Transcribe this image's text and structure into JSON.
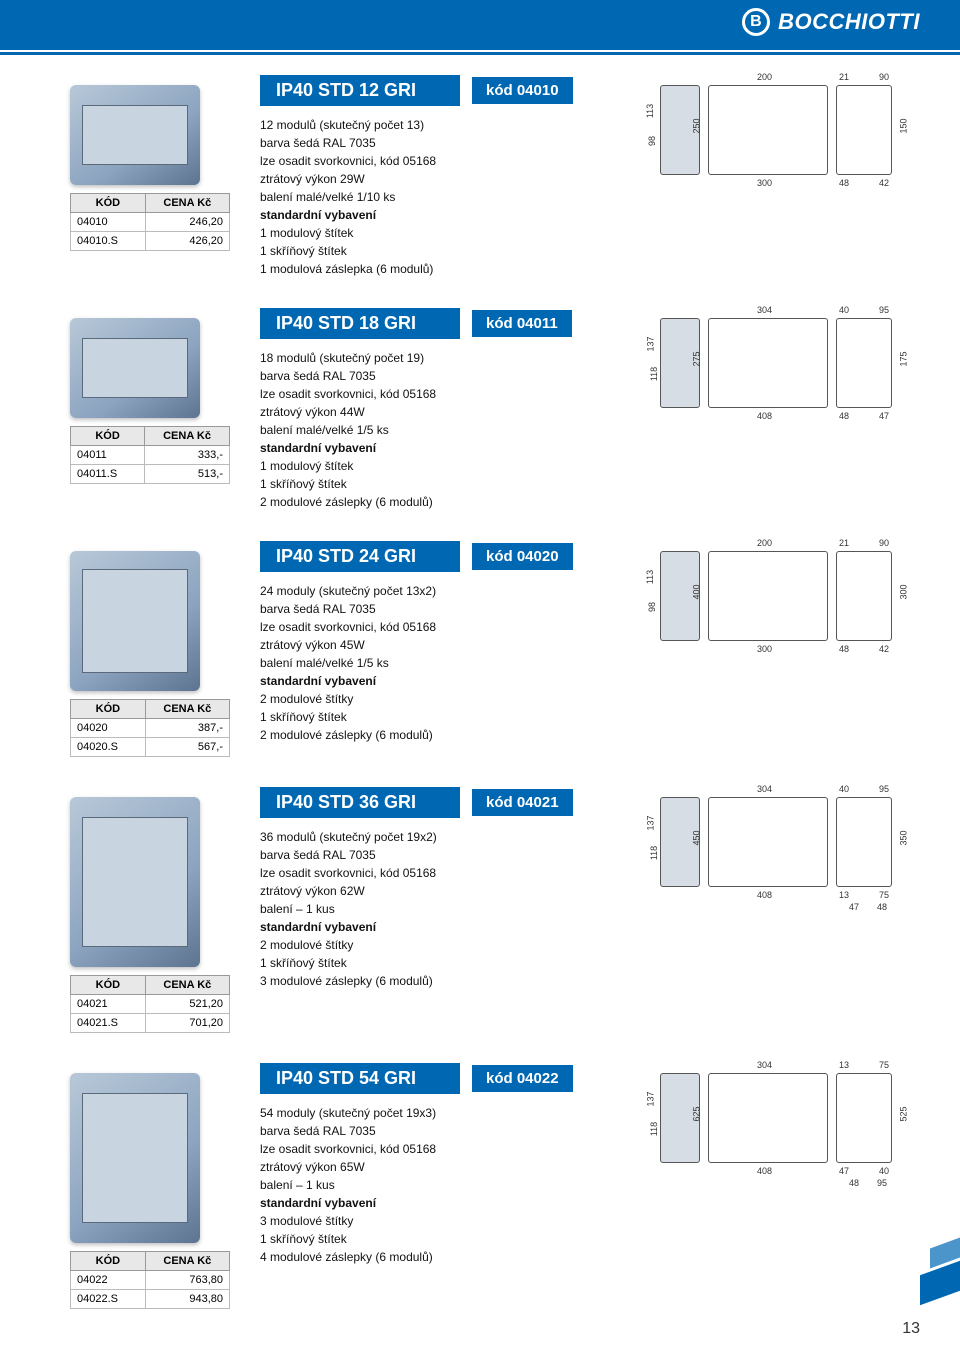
{
  "brand": "BOCCHIOTTI",
  "page_number": "13",
  "table_headers": {
    "code": "KÓD",
    "price": "CENA Kč"
  },
  "products": [
    {
      "title": "IP40 STD 12 GRI",
      "code_label": "kód 04010",
      "rows": [
        {
          "code": "04010",
          "price": "246,20"
        },
        {
          "code": "04010.S",
          "price": "426,20"
        }
      ],
      "desc": [
        "12 modulů (skutečný počet 13)",
        "barva šedá RAL 7035",
        "lze osadit svorkovnici, kód 05168",
        "ztrátový výkon 29W",
        "balení malé/velké 1/10 ks"
      ],
      "std_heading": "standardní vybavení",
      "std": [
        "1 modulový štítek",
        "1 skříňový štítek",
        "1 modulová záslepka (6 modulů)"
      ],
      "dims": {
        "front_h": "113",
        "front_d": "98",
        "top_w": "200",
        "top_h": "250",
        "top_b": "300",
        "side_a": "21",
        "side_b": "90",
        "side_h": "150",
        "side_c": "48",
        "side_d": "42"
      }
    },
    {
      "title": "IP40 STD 18 GRI",
      "code_label": "kód 04011",
      "rows": [
        {
          "code": "04011",
          "price": "333,-"
        },
        {
          "code": "04011.S",
          "price": "513,-"
        }
      ],
      "desc": [
        "18 modulů (skutečný počet 19)",
        "barva šedá RAL 7035",
        "lze osadit svorkovnici, kód 05168",
        "ztrátový výkon 44W",
        "balení malé/velké 1/5 ks"
      ],
      "std_heading": "standardní vybavení",
      "std": [
        "1 modulový štítek",
        "1 skříňový štítek",
        "2 modulové záslepky (6 modulů)"
      ],
      "dims": {
        "front_h": "137",
        "front_d": "118",
        "top_w": "304",
        "top_h": "275",
        "top_b": "408",
        "side_a": "40",
        "side_b": "95",
        "side_h": "175",
        "side_c": "48",
        "side_d": "47"
      }
    },
    {
      "title": "IP40 STD 24 GRI",
      "code_label": "kód 04020",
      "rows": [
        {
          "code": "04020",
          "price": "387,-"
        },
        {
          "code": "04020.S",
          "price": "567,-"
        }
      ],
      "desc": [
        "24 moduly (skutečný počet 13x2)",
        "barva šedá RAL 7035",
        "lze osadit svorkovnici, kód 05168",
        "ztrátový výkon 45W",
        "balení malé/velké 1/5 ks"
      ],
      "std_heading": "standardní vybavení",
      "std": [
        "2 modulové štítky",
        "1 skříňový štítek",
        "2 modulové záslepky (6 modulů)"
      ],
      "dims": {
        "front_h": "113",
        "front_d": "98",
        "top_w": "200",
        "top_h": "400",
        "top_b": "300",
        "side_a": "21",
        "side_b": "90",
        "side_h": "300",
        "side_c": "48",
        "side_d": "42"
      }
    },
    {
      "title": "IP40 STD 36 GRI",
      "code_label": "kód 04021",
      "rows": [
        {
          "code": "04021",
          "price": "521,20"
        },
        {
          "code": "04021.S",
          "price": "701,20"
        }
      ],
      "desc": [
        "36 modulů (skutečný počet 19x2)",
        "barva šedá RAL 7035",
        "lze osadit svorkovnici, kód 05168",
        "ztrátový výkon 62W",
        "balení – 1 kus"
      ],
      "std_heading": "standardní vybavení",
      "std": [
        "2 modulové štítky",
        "1 skříňový štítek",
        "3 modulové záslepky (6 modulů)"
      ],
      "dims": {
        "front_h": "137",
        "front_d": "118",
        "top_w": "304",
        "top_h": "450",
        "top_b": "408",
        "side_a": "40",
        "side_b": "95",
        "side_h": "350",
        "side_c": "13",
        "side_d": "75",
        "side_e": "47",
        "side_f": "48"
      }
    },
    {
      "title": "IP40 STD 54 GRI",
      "code_label": "kód 04022",
      "rows": [
        {
          "code": "04022",
          "price": "763,80"
        },
        {
          "code": "04022.S",
          "price": "943,80"
        }
      ],
      "desc": [
        "54 moduly (skutečný počet 19x3)",
        "barva šedá RAL 7035",
        "lze osadit svorkovnici, kód 05168",
        "ztrátový výkon 65W",
        "balení – 1 kus"
      ],
      "std_heading": "standardní vybavení",
      "std": [
        "3 modulové štítky",
        "1 skříňový štítek",
        "4 modulové záslepky (6 modulů)"
      ],
      "dims": {
        "front_h": "137",
        "front_d": "118",
        "top_w": "304",
        "top_h": "625",
        "top_b": "408",
        "side_a": "13",
        "side_b": "75",
        "side_c": "47",
        "side_h": "525",
        "side_d": "40",
        "side_e": "48",
        "side_f": "95"
      }
    }
  ]
}
